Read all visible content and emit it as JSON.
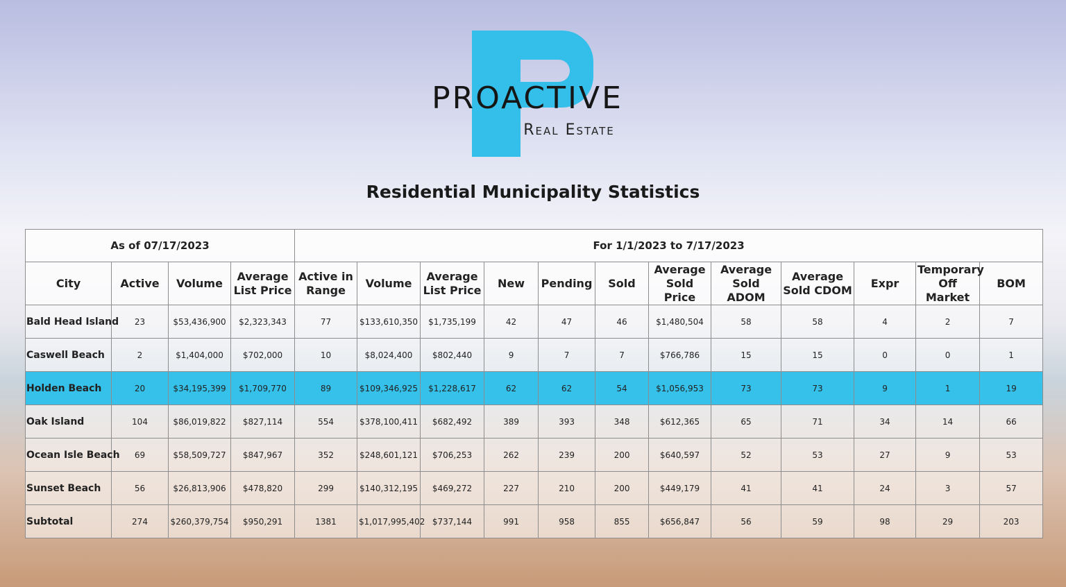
{
  "logo": {
    "name": "PROACTIVE",
    "tagline": "Real Estate"
  },
  "title": "Residential Municipality Statistics",
  "table": {
    "groups": [
      "As of 07/17/2023",
      "For 1/1/2023 to 7/17/2023"
    ],
    "columns": [
      "City",
      "Active",
      "Volume",
      "Average List Price",
      "Active in Range",
      "Volume",
      "Average List Price",
      "New",
      "Pending",
      "Sold",
      "Average Sold Price",
      "Average Sold ADOM",
      "Average Sold CDOM",
      "Expr",
      "Temporary Off Market",
      "BOM"
    ],
    "rows": [
      [
        "Bald Head Island",
        23,
        "$53,436,900",
        "$2,323,343",
        77,
        "$133,610,350",
        "$1,735,199",
        42,
        47,
        46,
        "$1,480,504",
        58,
        58,
        4,
        2,
        7
      ],
      [
        "Caswell Beach",
        2,
        "$1,404,000",
        "$702,000",
        10,
        "$8,024,400",
        "$802,440",
        9,
        7,
        7,
        "$766,786",
        15,
        15,
        0,
        0,
        1
      ],
      [
        "Holden Beach",
        20,
        "$34,195,399",
        "$1,709,770",
        89,
        "$109,346,925",
        "$1,228,617",
        62,
        62,
        54,
        "$1,056,953",
        73,
        73,
        9,
        1,
        19
      ],
      [
        "Oak Island",
        104,
        "$86,019,822",
        "$827,114",
        554,
        "$378,100,411",
        "$682,492",
        389,
        393,
        348,
        "$612,365",
        65,
        71,
        34,
        14,
        66
      ],
      [
        "Ocean Isle Beach",
        69,
        "$58,509,727",
        "$847,967",
        352,
        "$248,601,121",
        "$706,253",
        262,
        239,
        200,
        "$640,597",
        52,
        53,
        27,
        9,
        53
      ],
      [
        "Sunset Beach",
        56,
        "$26,813,906",
        "$478,820",
        299,
        "$140,312,195",
        "$469,272",
        227,
        210,
        200,
        "$449,179",
        41,
        41,
        24,
        3,
        57
      ],
      [
        "Subtotal",
        274,
        "$260,379,754",
        "$950,291",
        1381,
        "$1,017,995,402",
        "$737,144",
        991,
        958,
        855,
        "$656,847",
        56,
        59,
        98,
        29,
        203
      ]
    ]
  }
}
